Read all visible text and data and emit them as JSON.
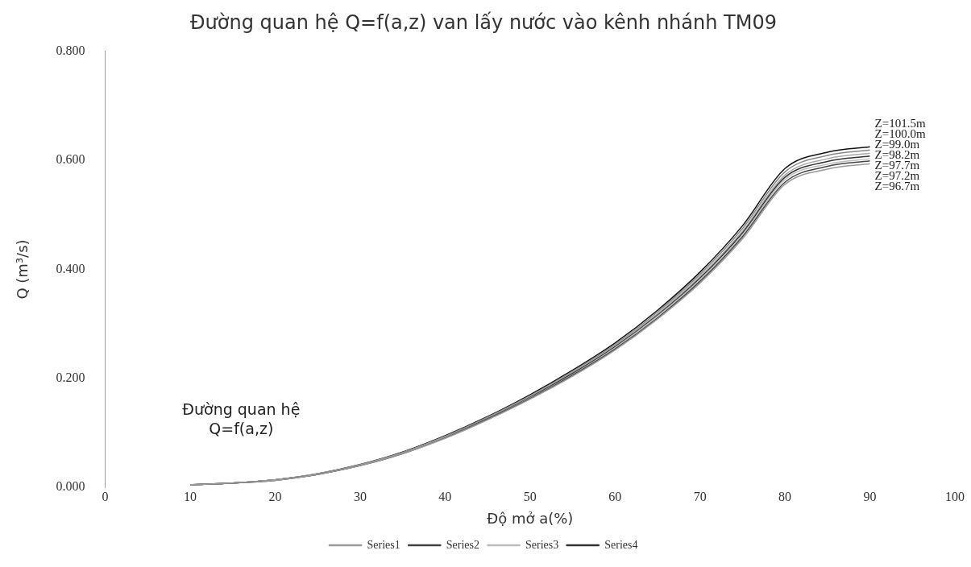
{
  "chart_data": {
    "type": "line",
    "title": "Đường quan hệ Q=f(a,z) van lấy nước vào kênh nhánh TM09",
    "xlabel": "Độ mở a(%)",
    "ylabel": "Q (m³/s)",
    "x": [
      10,
      15,
      20,
      25,
      30,
      35,
      40,
      45,
      50,
      55,
      60,
      65,
      70,
      75,
      80,
      85,
      90
    ],
    "series": [
      {
        "name": "Series1",
        "color": "#9a9a9a",
        "values": [
          0.005,
          0.008,
          0.013,
          0.024,
          0.04,
          0.062,
          0.09,
          0.124,
          0.162,
          0.204,
          0.252,
          0.309,
          0.375,
          0.456,
          0.556,
          0.584,
          0.594
        ]
      },
      {
        "name": "Series2",
        "color": "#444444",
        "values": [
          0.005,
          0.008,
          0.013,
          0.024,
          0.04,
          0.062,
          0.091,
          0.125,
          0.163,
          0.206,
          0.254,
          0.311,
          0.378,
          0.46,
          0.56,
          0.589,
          0.599
        ]
      },
      {
        "name": "Series3",
        "color": "#bdbdbd",
        "values": [
          0.005,
          0.008,
          0.014,
          0.024,
          0.041,
          0.063,
          0.092,
          0.125,
          0.164,
          0.207,
          0.256,
          0.314,
          0.381,
          0.463,
          0.565,
          0.593,
          0.603
        ]
      },
      {
        "name": "Series4",
        "color": "#333333",
        "values": [
          0.005,
          0.008,
          0.014,
          0.024,
          0.041,
          0.063,
          0.092,
          0.126,
          0.165,
          0.209,
          0.258,
          0.316,
          0.384,
          0.467,
          0.569,
          0.598,
          0.608
        ]
      },
      {
        "color": "#a8a8a8",
        "values": [
          0.005,
          0.008,
          0.014,
          0.025,
          0.041,
          0.064,
          0.093,
          0.127,
          0.167,
          0.211,
          0.26,
          0.319,
          0.387,
          0.47,
          0.573,
          0.603,
          0.613
        ]
      },
      {
        "color": "#888888",
        "values": [
          0.005,
          0.008,
          0.014,
          0.025,
          0.042,
          0.064,
          0.094,
          0.129,
          0.168,
          0.213,
          0.262,
          0.322,
          0.391,
          0.475,
          0.579,
          0.609,
          0.619
        ]
      },
      {
        "color": "#111111",
        "values": [
          0.005,
          0.008,
          0.014,
          0.025,
          0.042,
          0.065,
          0.095,
          0.13,
          0.17,
          0.215,
          0.265,
          0.325,
          0.395,
          0.48,
          0.585,
          0.615,
          0.625
        ]
      }
    ],
    "xlim": [
      0,
      100
    ],
    "xticks": [
      0,
      10,
      20,
      30,
      40,
      50,
      60,
      70,
      80,
      90,
      100
    ],
    "ylim": [
      0,
      0.8
    ],
    "yticks": [
      {
        "value": 0,
        "label": "0.000"
      },
      {
        "value": 0.2,
        "label": "0.200"
      },
      {
        "value": 0.4,
        "label": "0.400"
      },
      {
        "value": 0.6,
        "label": "0.600"
      },
      {
        "value": 0.8,
        "label": "0.800"
      }
    ],
    "annotations": [
      "Z=101.5m",
      "Z=100.0m",
      "Z=99.0m",
      "Z=98.2m",
      "Z=97.7m",
      "Z=97.2m",
      "Z=96.7m",
      "Đường quan hệ Q=f(a,z)"
    ],
    "grid": false,
    "legend": "bottom",
    "marker": "none",
    "line_style": "solid"
  }
}
